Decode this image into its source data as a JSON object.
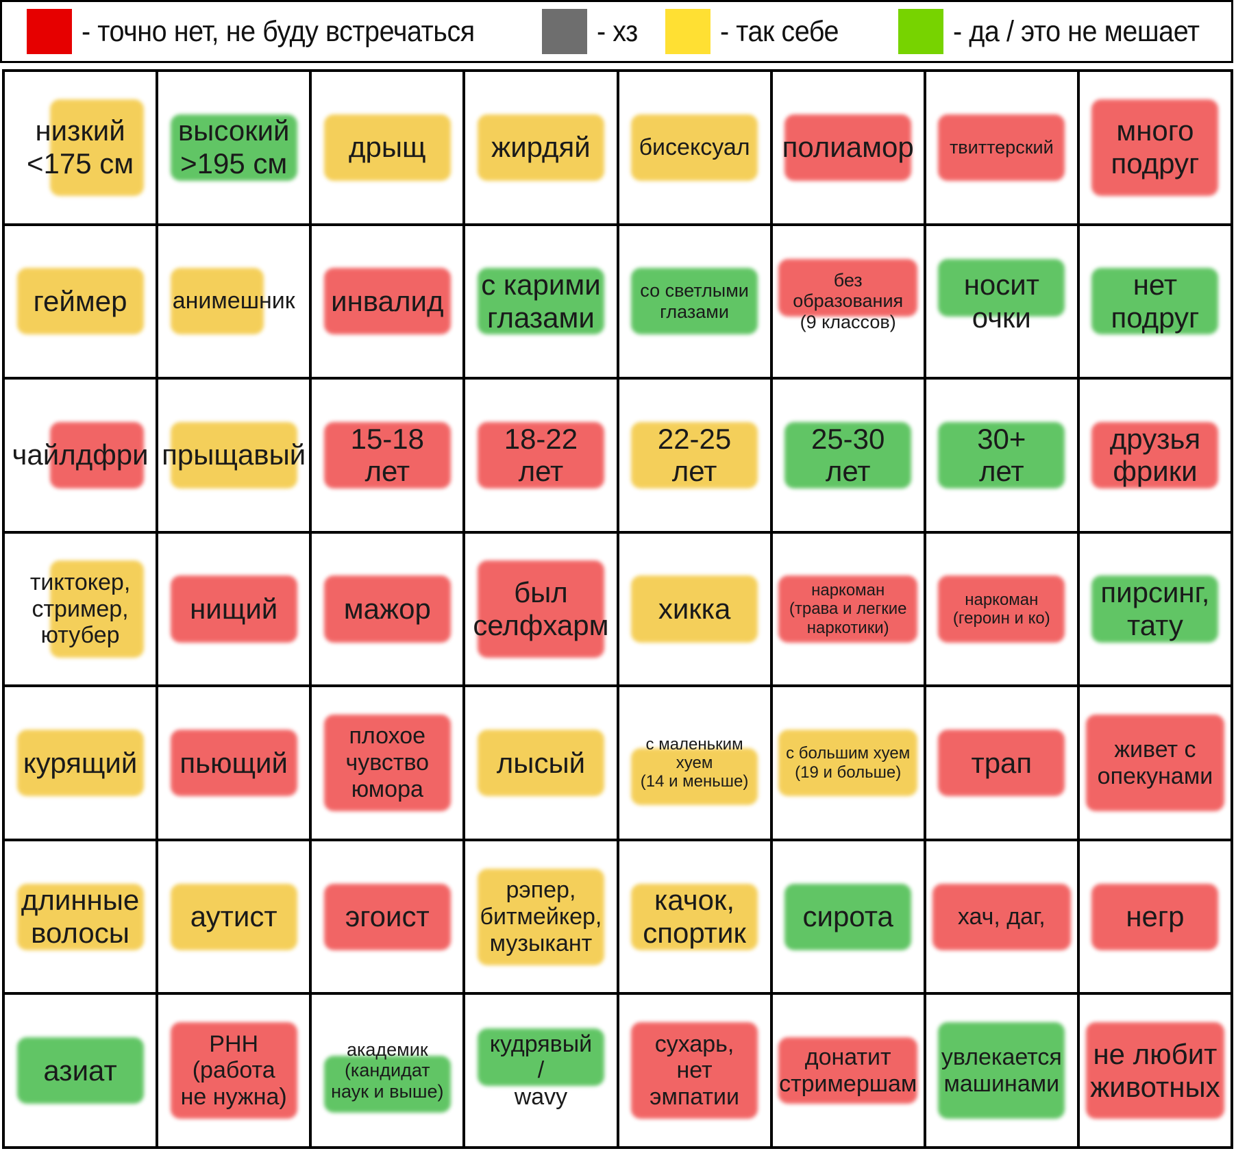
{
  "colors": {
    "red": "#e60000",
    "gray": "#6e6e6e",
    "yellow": "#ffe033",
    "green": "#77d300",
    "mark_red": "#ee3b3b",
    "mark_yellow": "#f2c22c",
    "mark_green": "#35b53a"
  },
  "legend": [
    {
      "color": "red",
      "text": "-  точно нет, не буду встречаться"
    },
    {
      "color": "gray",
      "text": "-  хз"
    },
    {
      "color": "yellow",
      "text": "-  так себе"
    },
    {
      "color": "green",
      "text": "-  да / это не мешает"
    }
  ],
  "grid": [
    [
      {
        "text": "низкий\n<175 см",
        "mark": "yellow"
      },
      {
        "text": "высокий\n>195 см",
        "mark": "green"
      },
      {
        "text": "дрыщ",
        "mark": "yellow"
      },
      {
        "text": "жирдяй",
        "mark": "yellow"
      },
      {
        "text": "бисексуал",
        "mark": "yellow"
      },
      {
        "text": "полиамор",
        "mark": "red"
      },
      {
        "text": "твиттерский",
        "mark": "red"
      },
      {
        "text": "много\nподруг",
        "mark": "red"
      }
    ],
    [
      {
        "text": "геймер",
        "mark": "yellow"
      },
      {
        "text": "анимешник",
        "mark": "yellow"
      },
      {
        "text": "инвалид",
        "mark": "red"
      },
      {
        "text": "с карими\nглазами",
        "mark": "green"
      },
      {
        "text": "со светлыми\nглазами",
        "mark": "green"
      },
      {
        "text": "без\nобразования\n(9 классов)",
        "mark": "red"
      },
      {
        "text": "носит\nочки",
        "mark": "green"
      },
      {
        "text": "нет\nподруг",
        "mark": "green"
      }
    ],
    [
      {
        "text": "чайлдфри",
        "mark": "red"
      },
      {
        "text": "прыщавый",
        "mark": "yellow"
      },
      {
        "text": "15-18\nлет",
        "mark": "red"
      },
      {
        "text": "18-22\nлет",
        "mark": "red"
      },
      {
        "text": "22-25\nлет",
        "mark": "yellow"
      },
      {
        "text": "25-30\nлет",
        "mark": "green"
      },
      {
        "text": "30+\nлет",
        "mark": "green"
      },
      {
        "text": "друзья\nфрики",
        "mark": "red"
      }
    ],
    [
      {
        "text": "тиктокер,\nстример,\nютубер",
        "mark": "yellow"
      },
      {
        "text": "нищий",
        "mark": "red"
      },
      {
        "text": "мажор",
        "mark": "red"
      },
      {
        "text": "был\nселфхарм",
        "mark": "red"
      },
      {
        "text": "хикка",
        "mark": "yellow"
      },
      {
        "text": "наркоман\n(трава и легкие\nнаркотики)",
        "mark": "red"
      },
      {
        "text": "наркоман\n(героин и ко)",
        "mark": "red"
      },
      {
        "text": "пирсинг,\nтату",
        "mark": "green"
      }
    ],
    [
      {
        "text": "курящий",
        "mark": "yellow"
      },
      {
        "text": "пьющий",
        "mark": "red"
      },
      {
        "text": "плохое\nчувство\nюмора",
        "mark": "red"
      },
      {
        "text": "лысый",
        "mark": "yellow"
      },
      {
        "text": "с маленьким\nхуем\n(14 и меньше)",
        "mark": "yellow"
      },
      {
        "text": "с большим хуем\n(19 и больше)",
        "mark": "yellow"
      },
      {
        "text": "трап",
        "mark": "red"
      },
      {
        "text": "живет с\nопекунами",
        "mark": "red"
      }
    ],
    [
      {
        "text": "длинные\nволосы",
        "mark": "yellow"
      },
      {
        "text": "аутист",
        "mark": "yellow"
      },
      {
        "text": "эгоист",
        "mark": "red"
      },
      {
        "text": "рэпер,\nбитмейкер,\nмузыкант",
        "mark": "yellow"
      },
      {
        "text": "качок,\nспортик",
        "mark": "yellow"
      },
      {
        "text": "сирота",
        "mark": "green"
      },
      {
        "text": "хач, даг,",
        "mark": "red"
      },
      {
        "text": "негр",
        "mark": "red"
      }
    ],
    [
      {
        "text": "азиат",
        "mark": "green"
      },
      {
        "text": "РНН\n(работа\nне нужна)",
        "mark": "red"
      },
      {
        "text": "академик\n(кандидат\nнаук и выше)",
        "mark": "green"
      },
      {
        "text": "кудрявый\n/\nwavy",
        "mark": "green"
      },
      {
        "text": "сухарь,\nнет\nэмпатии",
        "mark": "red"
      },
      {
        "text": "донатит\nстримершам",
        "mark": "red"
      },
      {
        "text": "увлекается\nмашинами",
        "mark": "green"
      },
      {
        "text": "не любит\nживотных",
        "mark": "red"
      }
    ]
  ]
}
